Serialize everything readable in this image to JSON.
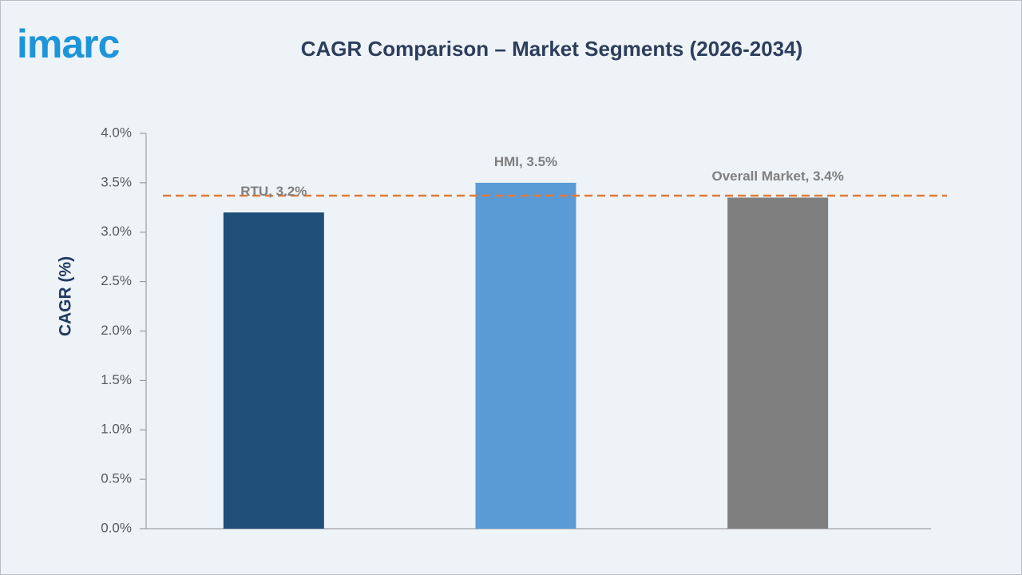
{
  "logo": "imarc",
  "chart_data": {
    "type": "bar",
    "title": "CAGR Comparison – Market Segments (2026-2034)",
    "y_label": "CAGR (%)",
    "values": [
      3.2,
      3.5,
      3.35
    ],
    "value_labels": [
      "RTU, 3.2%",
      "HMI, 3.5%",
      "Overall Market, 3.4%"
    ],
    "colors": [
      "#1f4e79",
      "#5b9bd5",
      "#7f7f7f"
    ],
    "reference_line": {
      "value": 3.37,
      "color": "#e07b39"
    },
    "ylim": [
      0,
      4
    ],
    "yticks": [
      {
        "value": 0,
        "label": "0.0%"
      },
      {
        "value": 0.5,
        "label": "0.5%"
      },
      {
        "value": 1,
        "label": "1.0%"
      },
      {
        "value": 1.5,
        "label": "1.5%"
      },
      {
        "value": 2,
        "label": "2.0%"
      },
      {
        "value": 2.5,
        "label": "2.5%"
      },
      {
        "value": 3,
        "label": "3.0%"
      },
      {
        "value": 3.5,
        "label": "3.5%"
      },
      {
        "value": 4,
        "label": "4.0%"
      }
    ],
    "grid": false
  }
}
